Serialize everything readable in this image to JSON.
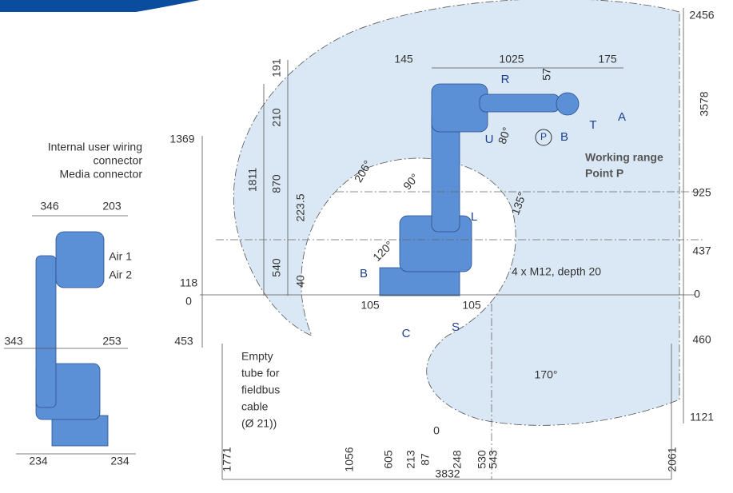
{
  "annotations": {
    "wiring": [
      "Internal user wiring",
      "connector",
      "Media connector"
    ],
    "air": [
      "Air 1",
      "Air 2"
    ],
    "working_range": [
      "Working range",
      "Point P"
    ],
    "mounting": "4 x M12, depth 20",
    "tube": [
      "Empty",
      "tube for",
      "fieldbus",
      "cable",
      "(Ø 21))"
    ]
  },
  "axes": [
    "R",
    "U",
    "B",
    "T",
    "A",
    "P",
    "L",
    "B",
    "C",
    "S"
  ],
  "dimensions": [
    "2456",
    "3578",
    "925",
    "437",
    "0",
    "460",
    "1121",
    "1369",
    "118",
    "0",
    "453",
    "191",
    "210",
    "1811",
    "870",
    "223.5",
    "540",
    "40",
    "145",
    "1025",
    "175",
    "57",
    "105",
    "105",
    "206°",
    "90°",
    "135°",
    "120°",
    "80°",
    "170°",
    "1771",
    "1056",
    "605",
    "213",
    "87",
    "0",
    "248",
    "530",
    "543",
    "3832",
    "2061",
    "346",
    "203",
    "343",
    "253",
    "234",
    "234"
  ]
}
